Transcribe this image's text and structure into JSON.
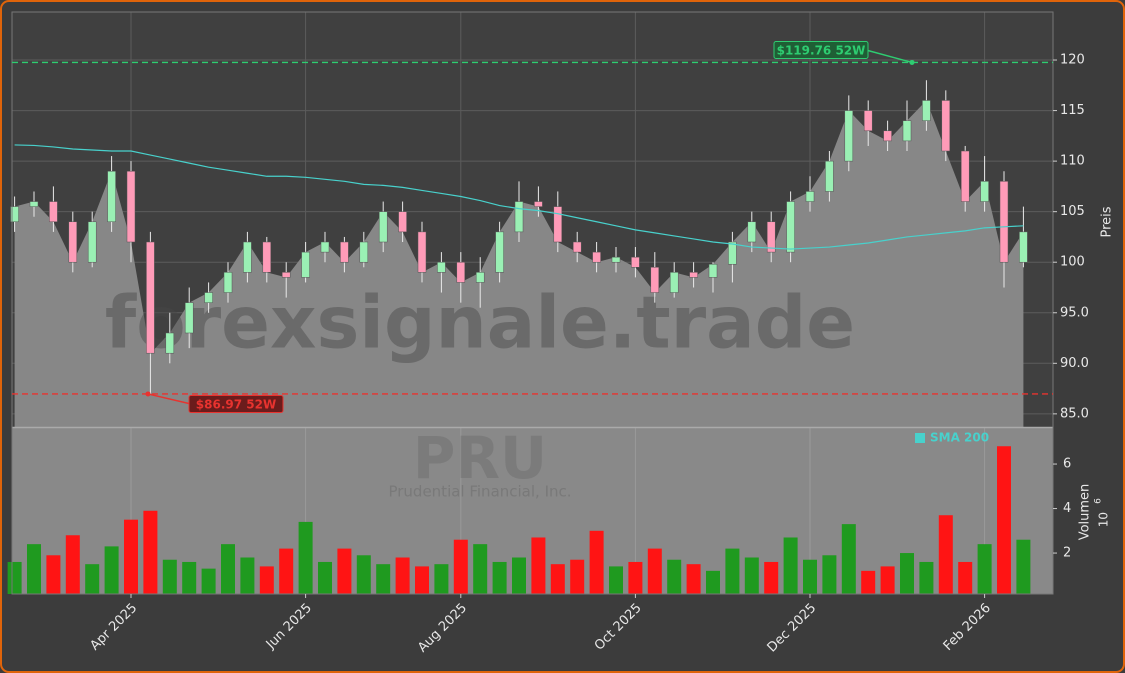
{
  "chart_data": {
    "type": "candlestick",
    "watermark": "forexsignale.trade",
    "ticker": "PRU",
    "company": "Prudential Financial, Inc.",
    "categories": [
      null,
      null,
      null,
      null,
      null,
      null,
      "Apr 2025",
      null,
      null,
      null,
      null,
      null,
      null,
      null,
      null,
      "Jun 2025",
      null,
      null,
      null,
      null,
      null,
      null,
      null,
      "Aug 2025",
      null,
      null,
      null,
      null,
      null,
      null,
      null,
      null,
      "Oct 2025",
      null,
      null,
      null,
      null,
      null,
      null,
      null,
      null,
      "Dec 2025",
      null,
      null,
      null,
      null,
      null,
      null,
      null,
      null,
      "Feb 2026",
      null,
      null
    ],
    "open": [
      104,
      105.5,
      106,
      104,
      100,
      104,
      109,
      102,
      91,
      93,
      96,
      97,
      99,
      102,
      99,
      98.5,
      101,
      102,
      100,
      102,
      105,
      103,
      99,
      100,
      98,
      99,
      103,
      106,
      105.5,
      102,
      101,
      100,
      100.5,
      99.5,
      97,
      99,
      98.5,
      99.8,
      102,
      104,
      101,
      106,
      107,
      110,
      115,
      113,
      112,
      114,
      116,
      111,
      106,
      108,
      100
    ],
    "high": [
      106.5,
      107,
      107.5,
      105,
      105,
      110.5,
      110,
      103,
      95,
      97.5,
      98,
      100,
      103,
      102.5,
      100,
      102,
      103,
      102.5,
      103,
      106,
      106,
      104,
      101,
      101,
      100.5,
      104,
      108,
      107.5,
      107,
      103,
      102,
      101.5,
      101.5,
      101,
      100,
      100,
      100,
      103,
      105,
      105,
      107,
      108.5,
      111,
      116.5,
      116,
      114,
      116,
      118,
      117,
      111.5,
      110.5,
      109,
      105.5
    ],
    "low": [
      103,
      104.5,
      103,
      99,
      99.5,
      103,
      100,
      86.97,
      90,
      91.5,
      95,
      96,
      98,
      98,
      96.5,
      98,
      100,
      99,
      99.5,
      101,
      102,
      98,
      97,
      96,
      95.5,
      98,
      102,
      104.5,
      101,
      100,
      99,
      99,
      98.5,
      96,
      96.5,
      97.5,
      97,
      98,
      101,
      100,
      100,
      105,
      106,
      109,
      111.5,
      111,
      111,
      113,
      110,
      105,
      105,
      97.5,
      99.5
    ],
    "close": [
      105.5,
      106,
      104,
      100,
      104,
      109,
      102,
      91,
      93,
      96,
      97,
      99,
      102,
      99,
      98.5,
      101,
      102,
      100,
      102,
      105,
      103,
      99,
      100,
      98,
      99,
      103,
      106,
      105.5,
      102,
      101,
      100,
      100.5,
      99.5,
      97,
      99,
      98.5,
      99.8,
      102,
      104,
      101,
      106,
      107,
      110,
      115,
      113,
      112,
      114,
      116,
      111,
      106,
      108,
      100,
      103
    ],
    "volume": [
      1.6,
      2.4,
      1.9,
      2.8,
      1.5,
      2.3,
      3.5,
      3.9,
      1.7,
      1.6,
      1.3,
      2.4,
      1.8,
      1.4,
      2.2,
      3.4,
      1.6,
      2.2,
      1.9,
      1.5,
      1.8,
      1.4,
      1.5,
      2.6,
      2.4,
      1.6,
      1.8,
      2.7,
      1.5,
      1.7,
      3.0,
      1.4,
      1.6,
      2.2,
      1.7,
      1.5,
      1.2,
      2.2,
      1.8,
      1.6,
      2.7,
      1.7,
      1.9,
      3.3,
      1.2,
      1.4,
      2.0,
      1.6,
      3.7,
      1.6,
      2.4,
      6.8,
      2.6
    ],
    "up_color": "#9af0b4",
    "down_color": "#ff9bb8",
    "volume_up_color": "#1f9a1f",
    "volume_down_color": "#ff1414",
    "area_color": "#878787",
    "sma": {
      "name": "SMA 200",
      "color": "#48d1cc",
      "values": [
        111.6,
        111.55,
        111.4,
        111.2,
        111.1,
        111.0,
        111.0,
        110.6,
        110.2,
        109.8,
        109.4,
        109.1,
        108.8,
        108.5,
        108.5,
        108.4,
        108.2,
        108.0,
        107.7,
        107.6,
        107.4,
        107.1,
        106.8,
        106.5,
        106.1,
        105.6,
        105.3,
        105.1,
        104.8,
        104.4,
        104.0,
        103.6,
        103.2,
        102.9,
        102.6,
        102.3,
        102.0,
        101.8,
        101.5,
        101.4,
        101.3,
        101.4,
        101.5,
        101.7,
        101.9,
        102.2,
        102.5,
        102.7,
        102.9,
        103.1,
        103.4,
        103.5,
        103.6
      ]
    },
    "ylabel": "Preis",
    "ylim": [
      83.7,
      124.75
    ],
    "yticks": [
      {
        "value": 85,
        "label": "85.0"
      },
      {
        "value": 90,
        "label": "90.0"
      },
      {
        "value": 95,
        "label": "95.0"
      },
      {
        "value": 100,
        "label": "100"
      },
      {
        "value": 105,
        "label": "105"
      },
      {
        "value": 110,
        "label": "110"
      },
      {
        "value": 115,
        "label": "115"
      },
      {
        "value": 120,
        "label": "120"
      }
    ],
    "volume_ylabel": "Volumen",
    "volume_scale": {
      "base": "10",
      "exponent": "6"
    },
    "volume_ylim": [
      0.16,
      7.62
    ],
    "volume_yticks": [
      2,
      4,
      6
    ],
    "grid": true,
    "hlines": [
      {
        "value": 119.76,
        "label": "$119.76 52W",
        "color": "#2ecc71"
      },
      {
        "value": 86.97,
        "label": "$86.97 52W",
        "color": "#e8332f"
      }
    ]
  }
}
